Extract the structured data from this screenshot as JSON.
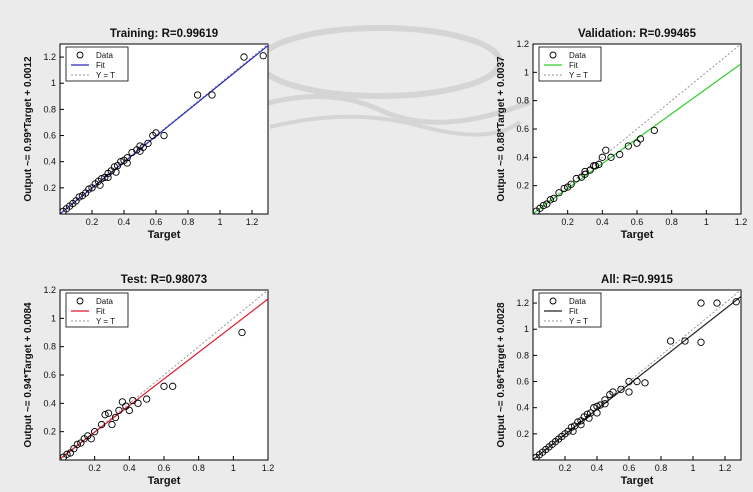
{
  "chart_data": [
    {
      "type": "scatter",
      "title": "Training: R=0.99619",
      "xlabel": "Target",
      "ylabel": "Output ~= 0.99*Target + 0.0012",
      "fit_color": "#2b2bbd",
      "fit": {
        "slope": 0.99,
        "intercept": 0.0012
      },
      "xlim": [
        0,
        1.3
      ],
      "ylim": [
        0,
        1.3
      ],
      "xticks": [
        "0.2",
        "0.4",
        "0.6",
        "0.8",
        "1",
        "1.2"
      ],
      "yticks": [
        "0.2",
        "0.4",
        "0.6",
        "0.8",
        "1",
        "1.2"
      ],
      "legend": [
        "Data",
        "Fit",
        "Y = T"
      ],
      "legend_loc": "top-left",
      "points": [
        [
          0.02,
          0.02
        ],
        [
          0.04,
          0.04
        ],
        [
          0.06,
          0.06
        ],
        [
          0.08,
          0.08
        ],
        [
          0.1,
          0.1
        ],
        [
          0.12,
          0.13
        ],
        [
          0.14,
          0.14
        ],
        [
          0.16,
          0.16
        ],
        [
          0.18,
          0.19
        ],
        [
          0.2,
          0.2
        ],
        [
          0.22,
          0.23
        ],
        [
          0.24,
          0.25
        ],
        [
          0.26,
          0.27
        ],
        [
          0.28,
          0.28
        ],
        [
          0.3,
          0.31
        ],
        [
          0.32,
          0.33
        ],
        [
          0.34,
          0.36
        ],
        [
          0.36,
          0.37
        ],
        [
          0.38,
          0.4
        ],
        [
          0.4,
          0.41
        ],
        [
          0.42,
          0.43
        ],
        [
          0.45,
          0.47
        ],
        [
          0.48,
          0.49
        ],
        [
          0.5,
          0.52
        ],
        [
          0.52,
          0.51
        ],
        [
          0.55,
          0.54
        ],
        [
          0.58,
          0.6
        ],
        [
          0.6,
          0.62
        ],
        [
          0.65,
          0.6
        ],
        [
          0.35,
          0.32
        ],
        [
          0.3,
          0.28
        ],
        [
          0.25,
          0.22
        ],
        [
          0.42,
          0.39
        ],
        [
          0.5,
          0.48
        ],
        [
          0.86,
          0.91
        ],
        [
          0.95,
          0.91
        ],
        [
          1.15,
          1.2
        ],
        [
          1.27,
          1.21
        ]
      ]
    },
    {
      "type": "scatter",
      "title": "Validation: R=0.99465",
      "xlabel": "Target",
      "ylabel": "Output ~= 0.88*Target + 0.0037",
      "fit_color": "#2fcf2f",
      "fit": {
        "slope": 0.88,
        "intercept": 0.0037
      },
      "xlim": [
        0,
        1.2
      ],
      "ylim": [
        0,
        1.2
      ],
      "xticks": [
        "0.2",
        "0.4",
        "0.6",
        "0.8",
        "1",
        "1.2"
      ],
      "yticks": [
        "0.2",
        "0.4",
        "0.6",
        "0.8",
        "1",
        "1.2"
      ],
      "legend": [
        "Data",
        "Fit",
        "Y = T"
      ],
      "legend_loc": "top-left",
      "points": [
        [
          0.02,
          0.02
        ],
        [
          0.04,
          0.04
        ],
        [
          0.06,
          0.06
        ],
        [
          0.08,
          0.07
        ],
        [
          0.1,
          0.1
        ],
        [
          0.12,
          0.11
        ],
        [
          0.15,
          0.15
        ],
        [
          0.18,
          0.18
        ],
        [
          0.2,
          0.19
        ],
        [
          0.22,
          0.21
        ],
        [
          0.25,
          0.25
        ],
        [
          0.28,
          0.26
        ],
        [
          0.3,
          0.28
        ],
        [
          0.33,
          0.31
        ],
        [
          0.35,
          0.34
        ],
        [
          0.38,
          0.35
        ],
        [
          0.4,
          0.4
        ],
        [
          0.42,
          0.45
        ],
        [
          0.45,
          0.4
        ],
        [
          0.5,
          0.42
        ],
        [
          0.55,
          0.48
        ],
        [
          0.6,
          0.5
        ],
        [
          0.62,
          0.53
        ],
        [
          0.7,
          0.59
        ],
        [
          0.36,
          0.34
        ],
        [
          0.3,
          0.3
        ]
      ]
    },
    {
      "type": "scatter",
      "title": "Test: R=0.98073",
      "xlabel": "Target",
      "ylabel": "Output ~= 0.94*Target + 0.0084",
      "fit_color": "#e01830",
      "fit": {
        "slope": 0.94,
        "intercept": 0.0084
      },
      "xlim": [
        0,
        1.2
      ],
      "ylim": [
        0,
        1.2
      ],
      "xticks": [
        "0.2",
        "0.4",
        "0.6",
        "0.8",
        "1",
        "1.2"
      ],
      "yticks": [
        "0.2",
        "0.4",
        "0.6",
        "0.8",
        "1",
        "1.2"
      ],
      "legend": [
        "Data",
        "Fit",
        "Y = T"
      ],
      "legend_loc": "top-left",
      "points": [
        [
          0.02,
          0.02
        ],
        [
          0.04,
          0.04
        ],
        [
          0.06,
          0.05
        ],
        [
          0.08,
          0.08
        ],
        [
          0.1,
          0.11
        ],
        [
          0.12,
          0.12
        ],
        [
          0.14,
          0.15
        ],
        [
          0.16,
          0.17
        ],
        [
          0.18,
          0.15
        ],
        [
          0.2,
          0.2
        ],
        [
          0.24,
          0.25
        ],
        [
          0.26,
          0.32
        ],
        [
          0.28,
          0.33
        ],
        [
          0.3,
          0.25
        ],
        [
          0.32,
          0.3
        ],
        [
          0.34,
          0.35
        ],
        [
          0.36,
          0.41
        ],
        [
          0.38,
          0.38
        ],
        [
          0.4,
          0.35
        ],
        [
          0.42,
          0.42
        ],
        [
          0.45,
          0.4
        ],
        [
          0.5,
          0.43
        ],
        [
          0.6,
          0.52
        ],
        [
          0.65,
          0.52
        ],
        [
          1.05,
          0.9
        ]
      ]
    },
    {
      "type": "scatter",
      "title": "All: R=0.9915",
      "xlabel": "Target",
      "ylabel": "Output ~= 0.96*Target + 0.0028",
      "fit_color": "#222222",
      "fit": {
        "slope": 0.96,
        "intercept": 0.0028
      },
      "xlim": [
        0,
        1.3
      ],
      "ylim": [
        0,
        1.3
      ],
      "xticks": [
        "0.2",
        "0.4",
        "0.6",
        "0.8",
        "1",
        "1.2"
      ],
      "yticks": [
        "0.2",
        "0.4",
        "0.6",
        "0.8",
        "1",
        "1.2"
      ],
      "legend": [
        "Data",
        "Fit",
        "Y = T"
      ],
      "legend_loc": "top-left",
      "points": [
        [
          0.02,
          0.02
        ],
        [
          0.04,
          0.04
        ],
        [
          0.06,
          0.06
        ],
        [
          0.08,
          0.08
        ],
        [
          0.1,
          0.1
        ],
        [
          0.12,
          0.12
        ],
        [
          0.14,
          0.14
        ],
        [
          0.16,
          0.16
        ],
        [
          0.18,
          0.18
        ],
        [
          0.2,
          0.2
        ],
        [
          0.22,
          0.22
        ],
        [
          0.24,
          0.25
        ],
        [
          0.26,
          0.26
        ],
        [
          0.28,
          0.29
        ],
        [
          0.3,
          0.3
        ],
        [
          0.32,
          0.33
        ],
        [
          0.34,
          0.35
        ],
        [
          0.36,
          0.36
        ],
        [
          0.38,
          0.4
        ],
        [
          0.4,
          0.41
        ],
        [
          0.42,
          0.42
        ],
        [
          0.45,
          0.46
        ],
        [
          0.48,
          0.5
        ],
        [
          0.5,
          0.52
        ],
        [
          0.55,
          0.54
        ],
        [
          0.6,
          0.6
        ],
        [
          0.65,
          0.6
        ],
        [
          0.7,
          0.59
        ],
        [
          0.3,
          0.27
        ],
        [
          0.25,
          0.22
        ],
        [
          0.35,
          0.32
        ],
        [
          0.4,
          0.36
        ],
        [
          0.45,
          0.43
        ],
        [
          0.6,
          0.52
        ],
        [
          0.86,
          0.91
        ],
        [
          0.95,
          0.91
        ],
        [
          1.05,
          1.2
        ],
        [
          1.15,
          1.2
        ],
        [
          1.27,
          1.21
        ],
        [
          1.05,
          0.9
        ]
      ]
    }
  ]
}
